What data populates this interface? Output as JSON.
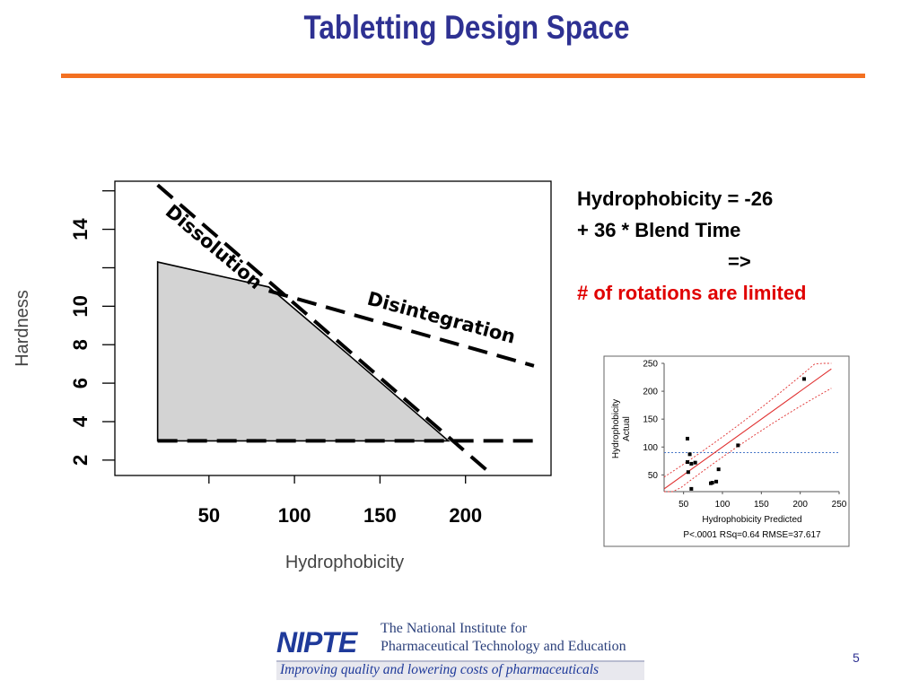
{
  "slide": {
    "title": "Tabletting Design Space",
    "page_number": "5"
  },
  "equation": {
    "line1": "Hydrophobicity = -26",
    "line2": "+ 36 * Blend Time",
    "arrow": "=>",
    "conclusion": "# of rotations are limited"
  },
  "logo": {
    "mark": "NIPTE",
    "line1": "The National Institute for",
    "line2": "Pharmaceutical Technology and Education",
    "tagline": "Improving quality and lowering costs of pharmaceuticals"
  },
  "colors": {
    "title": "#2e3192",
    "rule": "#f37021",
    "region_fill": "#d3d3d3",
    "highlight": "#e00000",
    "fit_line": "#e03030",
    "mean_line": "#4a78c8"
  },
  "chart_data": [
    {
      "type": "area",
      "title": "",
      "xlabel": "Hydrophobicity",
      "ylabel": "Hardness",
      "xlim": [
        -5,
        250
      ],
      "ylim": [
        1.2,
        16.5
      ],
      "xticks": [
        50,
        100,
        150,
        200
      ],
      "yticks": [
        2,
        4,
        6,
        8,
        10,
        14
      ],
      "yminor_ticks": [
        12,
        16
      ],
      "grid": false,
      "feasible_region": {
        "x": [
          20,
          20,
          85,
          130,
          190
        ],
        "y": [
          3,
          12.3,
          11,
          7.6,
          3
        ]
      },
      "constraints": [
        {
          "name": "Dissolution",
          "x": [
            20,
            216
          ],
          "y": [
            16.3,
            1.2
          ]
        },
        {
          "name": "Disintegration",
          "x": [
            85,
            240
          ],
          "y": [
            10.8,
            6.9
          ]
        },
        {
          "name": "",
          "x": [
            20,
            240
          ],
          "y": [
            3,
            3
          ]
        }
      ],
      "annotations": [
        "Dissolution",
        "Disintegration"
      ]
    },
    {
      "type": "scatter",
      "title": "",
      "xlabel": "Hydrophobicity Predicted",
      "ylabel": "Hydrophobicity Actual",
      "xlim": [
        25,
        250
      ],
      "ylim": [
        20,
        250
      ],
      "xticks": [
        50,
        100,
        150,
        200,
        250
      ],
      "yticks": [
        50,
        100,
        150,
        200,
        250
      ],
      "points": {
        "x": [
          55,
          58,
          55,
          60,
          56,
          65,
          60,
          85,
          87,
          92,
          95,
          120,
          205
        ],
        "y": [
          115,
          87,
          73,
          70,
          55,
          72,
          25,
          35,
          36,
          38,
          60,
          103,
          222
        ]
      },
      "mean_line_y": 90,
      "fit_line": {
        "x": [
          25,
          240
        ],
        "y": [
          25,
          240
        ]
      },
      "stats": "P<.0001 RSq=0.64 RMSE=37.617"
    }
  ]
}
